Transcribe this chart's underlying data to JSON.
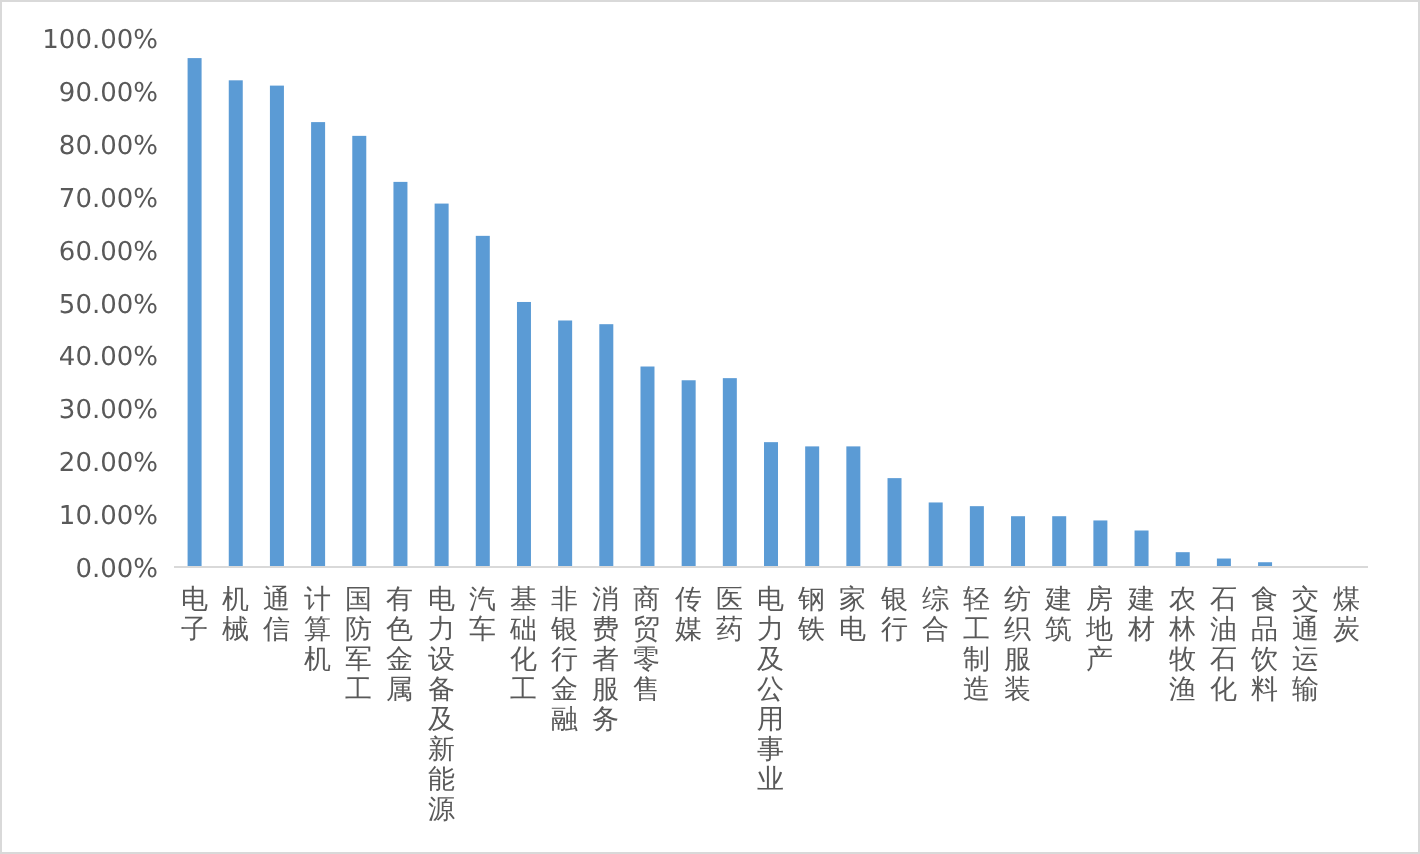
{
  "chart_data": {
    "type": "bar",
    "categories": [
      "电子",
      "机械",
      "通信",
      "计算机",
      "国防军工",
      "有色金属",
      "电力设备及新能源",
      "汽车",
      "基础化工",
      "非银行金融",
      "消费者服务",
      "商贸零售",
      "传媒",
      "医药",
      "电力及公用事业",
      "钢铁",
      "家电",
      "银行",
      "综合",
      "轻工制造",
      "纺织服装",
      "建筑",
      "房地产",
      "建材",
      "农林牧渔",
      "石油石化",
      "食品饮料",
      "交通运输",
      "煤炭"
    ],
    "series": [
      {
        "color": "#5b9bd5",
        "values": [
          96.2,
          92.0,
          91.0,
          84.1,
          81.5,
          72.8,
          68.7,
          62.6,
          50.1,
          46.6,
          45.9,
          37.9,
          35.3,
          35.7,
          23.6,
          22.8,
          22.8,
          16.8,
          12.2,
          11.5,
          9.6,
          9.6,
          8.8,
          6.9,
          2.8,
          1.6,
          0.9,
          0,
          0
        ]
      }
    ],
    "ylim": [
      0,
      100
    ],
    "yticks": [
      {
        "value": 0,
        "label": "0.00%"
      },
      {
        "value": 10,
        "label": "10.00%"
      },
      {
        "value": 20,
        "label": "20.00%"
      },
      {
        "value": 30,
        "label": "30.00%"
      },
      {
        "value": 40,
        "label": "40.00%"
      },
      {
        "value": 50,
        "label": "50.00%"
      },
      {
        "value": 60,
        "label": "60.00%"
      },
      {
        "value": 70,
        "label": "70.00%"
      },
      {
        "value": 80,
        "label": "80.00%"
      },
      {
        "value": 90,
        "label": "90.00%"
      },
      {
        "value": 100,
        "label": "100.00%"
      }
    ],
    "grid": false
  }
}
